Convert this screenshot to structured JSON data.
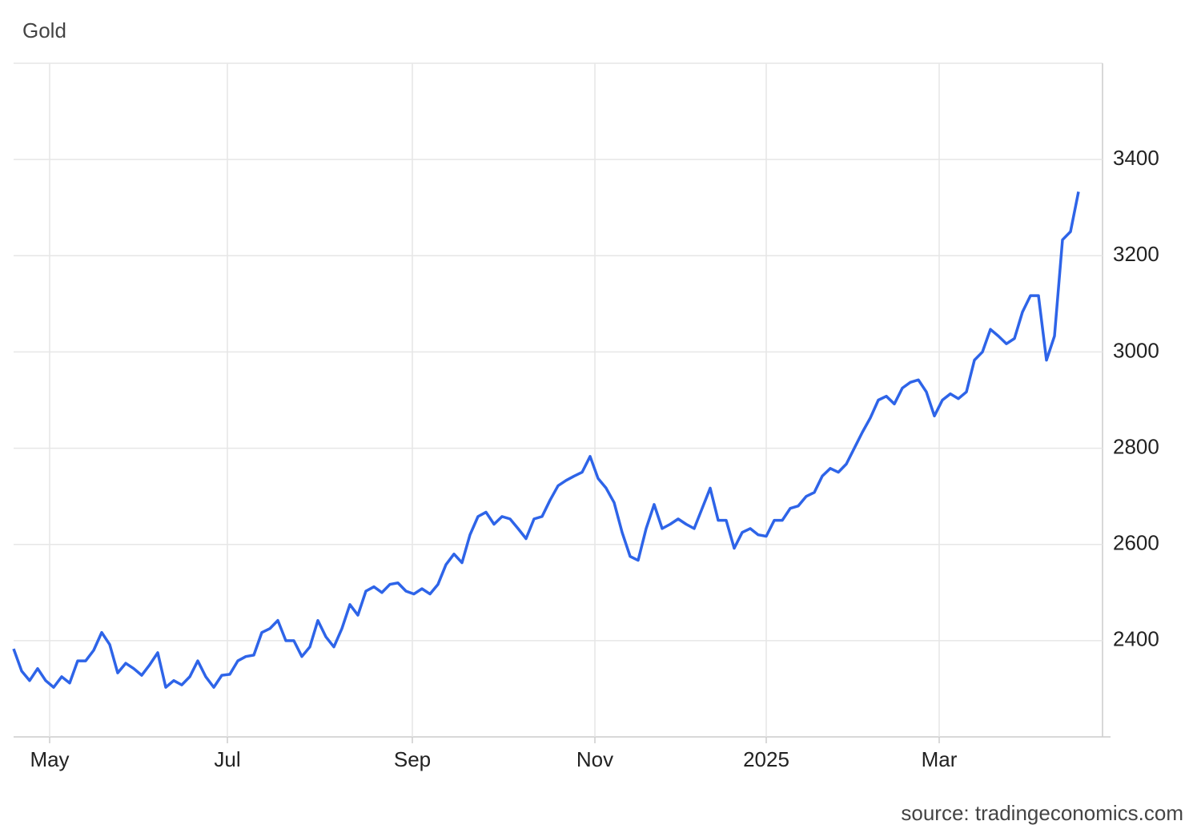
{
  "chart_data": {
    "type": "line",
    "title": "Gold",
    "source": "source: tradingeconomics.com",
    "series": [
      {
        "name": "Gold",
        "color": "#2e64e8",
        "values": [
          2383,
          2337,
          2317,
          2342,
          2317,
          2303,
          2325,
          2312,
          2358,
          2358,
          2380,
          2417,
          2392,
          2333,
          2353,
          2342,
          2328,
          2350,
          2375,
          2303,
          2317,
          2308,
          2325,
          2358,
          2325,
          2303,
          2328,
          2330,
          2358,
          2367,
          2370,
          2417,
          2425,
          2442,
          2400,
          2400,
          2367,
          2387,
          2442,
          2408,
          2387,
          2425,
          2475,
          2453,
          2503,
          2512,
          2500,
          2517,
          2520,
          2503,
          2497,
          2508,
          2497,
          2517,
          2558,
          2580,
          2562,
          2620,
          2658,
          2667,
          2642,
          2658,
          2653,
          2633,
          2612,
          2653,
          2658,
          2692,
          2722,
          2733,
          2742,
          2750,
          2783,
          2737,
          2717,
          2687,
          2625,
          2575,
          2567,
          2633,
          2683,
          2633,
          2642,
          2653,
          2642,
          2633,
          2675,
          2717,
          2650,
          2650,
          2592,
          2625,
          2633,
          2620,
          2617,
          2650,
          2650,
          2675,
          2680,
          2700,
          2708,
          2742,
          2758,
          2750,
          2767,
          2800,
          2833,
          2863,
          2900,
          2908,
          2892,
          2925,
          2937,
          2942,
          2917,
          2867,
          2900,
          2913,
          2903,
          2917,
          2983,
          3000,
          3047,
          3033,
          3017,
          3028,
          3083,
          3117,
          3117,
          2983,
          3033,
          3233,
          3250,
          3333
        ]
      }
    ],
    "xlim": [
      0,
      136
    ],
    "xticks": [
      {
        "value": 4.5,
        "label": "May"
      },
      {
        "value": 26.7,
        "label": "Jul"
      },
      {
        "value": 49.8,
        "label": "Sep"
      },
      {
        "value": 72.6,
        "label": "Nov"
      },
      {
        "value": 94,
        "label": "2025"
      },
      {
        "value": 115.6,
        "label": "Mar"
      }
    ],
    "ylim": [
      2200,
      3600
    ],
    "yticks": [
      2400,
      2600,
      2800,
      3000,
      3200,
      3400
    ],
    "grid": true
  }
}
